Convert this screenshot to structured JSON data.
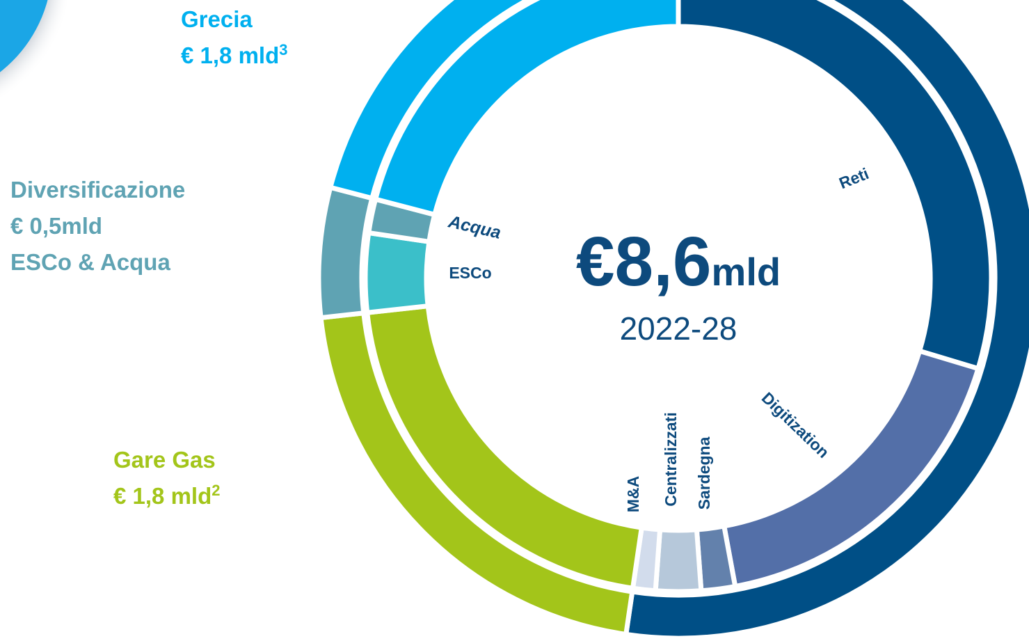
{
  "chart_data": {
    "type": "nested-donut",
    "total": 8.6,
    "total_label": "€8,6",
    "total_unit": "mld",
    "period": "2022-28",
    "series": [
      {
        "categories": [
          null,
          "Gare Gas",
          "Diversificazione",
          "Grecia"
        ],
        "values": [
          4.5,
          1.8,
          0.5,
          1.8
        ],
        "value_labels": [
          null,
          "€ 1,8 mld",
          "€ 0,5mld",
          "€ 1,8 mld"
        ],
        "footnotes": [
          null,
          "2",
          null,
          "3"
        ],
        "sublabels": [
          null,
          null,
          "ESCo & Acqua",
          null
        ],
        "colors": [
          "#004f86",
          "#a3c51a",
          "#5fa3b3",
          "#00b0ef"
        ]
      },
      {
        "categories": [
          "Reti",
          "Digitization",
          "Sardegna",
          "Centralizzati",
          "M&A",
          null,
          "ESCo",
          "Acqua",
          null
        ],
        "values": [
          2.55,
          1.5,
          0.15,
          0.2,
          0.1,
          1.8,
          0.35,
          0.15,
          1.8
        ],
        "colors": [
          "#004f86",
          "#536fa8",
          "#6381ac",
          "#b6c8da",
          "#d2dcec",
          "#a3c51a",
          "#3bbfc9",
          "#5fa3b3",
          "#00b0ef"
        ]
      }
    ]
  }
}
